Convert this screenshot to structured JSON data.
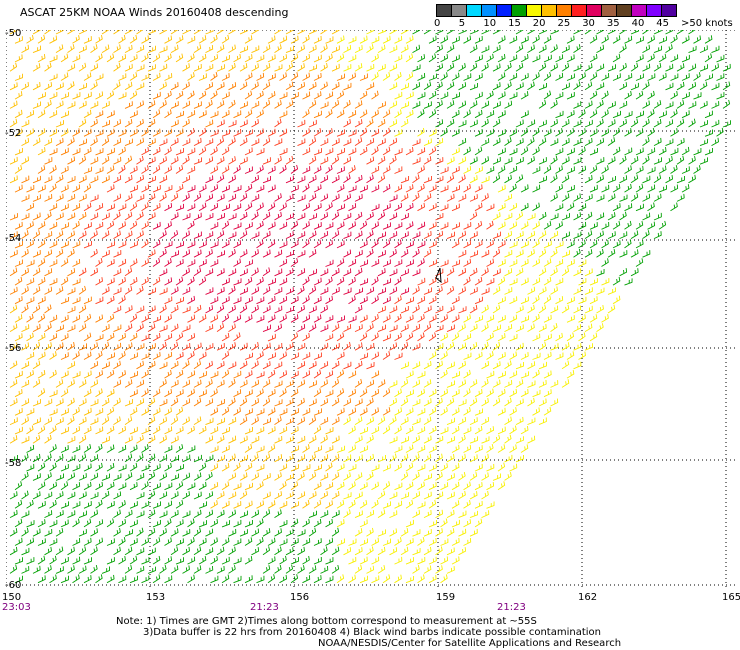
{
  "title": "ASCAT 25KM NOAA Winds 20160408 descending",
  "scale": {
    "labels": [
      "0",
      "5",
      "10",
      "15",
      "20",
      "25",
      "30",
      "35",
      "40",
      "45",
      ">50 knots"
    ],
    "colors": [
      "#444444",
      "#888888",
      "#00d8ff",
      "#0090ff",
      "#0020ff",
      "#00a000",
      "#f8f800",
      "#ffc000",
      "#ff8000",
      "#ff2020",
      "#e00060",
      "#a06040",
      "#604020",
      "#c000c0",
      "#8000ff",
      "#5000a0"
    ]
  },
  "map": {
    "lat_labels": [
      "-50",
      "-52",
      "-54",
      "-56",
      "-58",
      "-60"
    ],
    "lon_labels": [
      "150",
      "153",
      "156",
      "159",
      "162",
      "165"
    ],
    "time_labels": [
      "23:03",
      "21:23",
      "21:23"
    ],
    "region": {
      "lon_min": 150,
      "lon_max": 165,
      "lat_min": -60,
      "lat_max": -50
    }
  },
  "notes": {
    "line1": "Note: 1) Times are GMT 2)Times along bottom correspond to measurement at ~55S",
    "line2": "3)Data buffer is 22 hrs from 20160408 4) Black wind barbs indicate possible contamination",
    "line3": "NOAA/NESDIS/Center for Satellite Applications and Research"
  }
}
